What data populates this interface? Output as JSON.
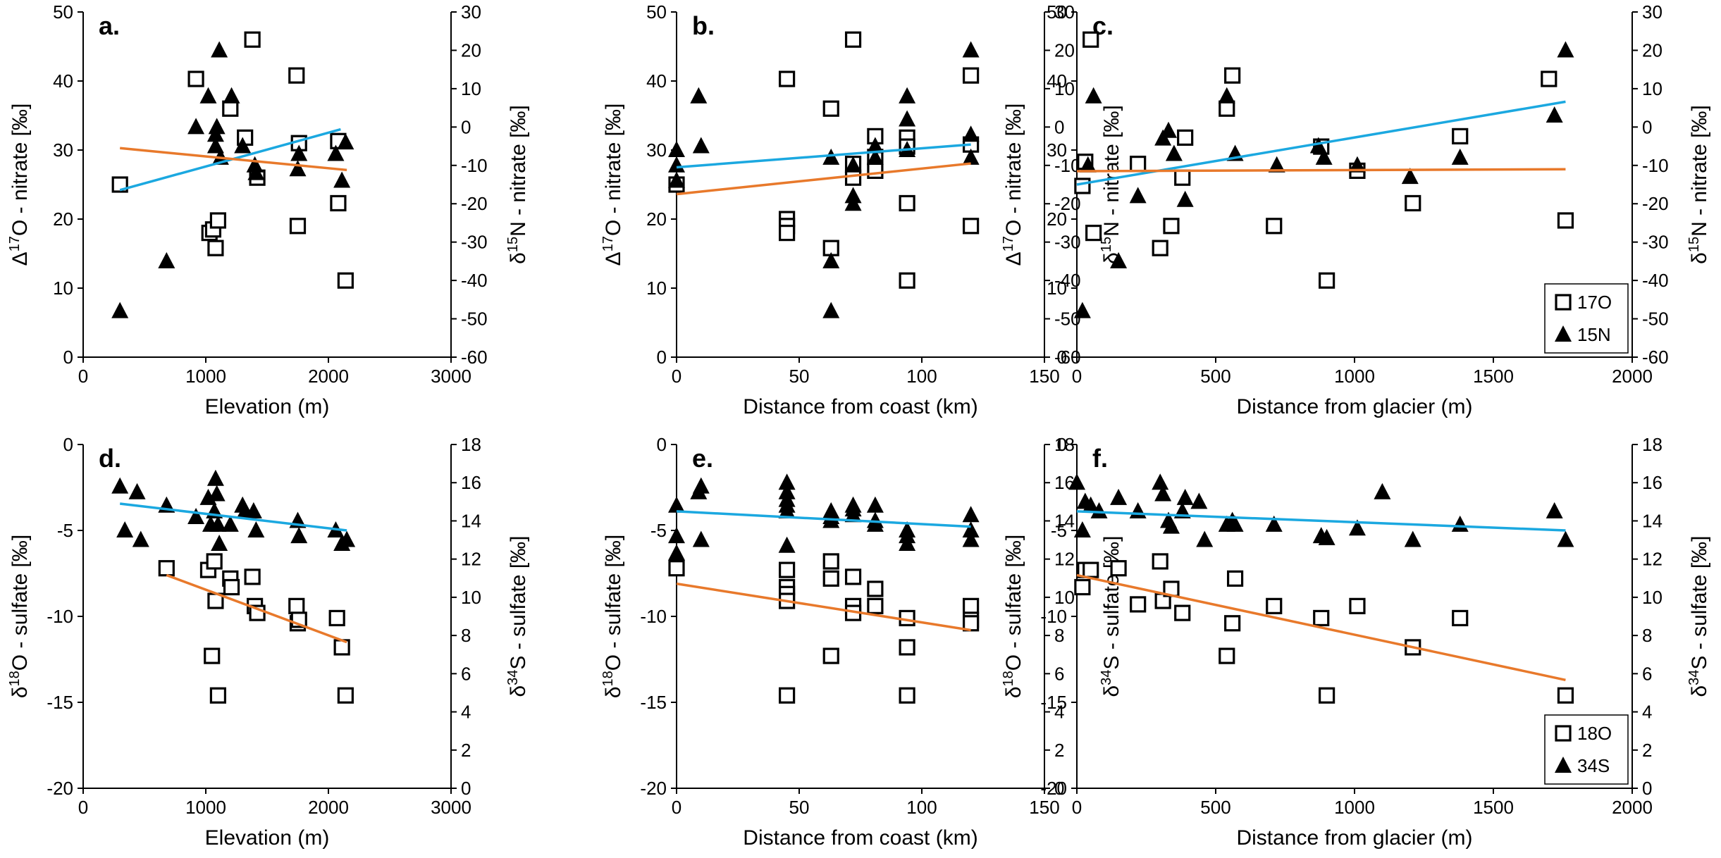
{
  "colors": {
    "fit_primary": "#1ba8e0",
    "fit_secondary": "#e8792b",
    "marker": "#000000"
  },
  "chart_data": [
    {
      "type": "scatter",
      "panel": "a.",
      "xlabel": "Elevation (m)",
      "xlim": [
        0,
        3000
      ],
      "xticks": [
        "0",
        "1000",
        "2000",
        "3000"
      ],
      "ylabel_left": {
        "pre": "Δ",
        "sup": "17",
        "post": "O - nitrate [‰]"
      },
      "ylim_left": [
        0,
        50
      ],
      "yticks_left": [
        "0",
        "10",
        "20",
        "30",
        "40",
        "50"
      ],
      "ylabel_right": {
        "pre": "δ",
        "sup": "15",
        "post": "N - nitrate [‰]"
      },
      "ylim_right": [
        -60,
        30
      ],
      "yticks_right": [
        "-60",
        "-50",
        "-40",
        "-30",
        "-20",
        "-10",
        "0",
        "10",
        "20",
        "30"
      ],
      "series": [
        {
          "name": "17O",
          "marker": "square",
          "axis": "left",
          "x": [
            300,
            920,
            1030,
            1060,
            1080,
            1100,
            1200,
            1320,
            1380,
            1420,
            1740,
            1760,
            1750,
            2080,
            2080,
            2140
          ],
          "y": [
            25,
            40.3,
            18,
            18.5,
            15.8,
            19.8,
            36,
            31.8,
            46,
            26,
            40.8,
            31,
            19,
            31.3,
            22.3,
            11.1
          ]
        },
        {
          "name": "15N",
          "marker": "triangle",
          "axis": "right",
          "x": [
            300,
            680,
            920,
            1020,
            1080,
            1080,
            1090,
            1110,
            1120,
            1210,
            1300,
            1400,
            1410,
            1750,
            1760,
            2060,
            2110,
            2140
          ],
          "y": [
            -48,
            -35,
            0,
            8,
            -5,
            -2,
            0,
            20,
            -8,
            8,
            -5,
            -10,
            -12,
            -11,
            -7,
            -7,
            -14,
            -4
          ]
        }
      ],
      "fits": [
        {
          "series": "17O",
          "axis": "left",
          "x": [
            300,
            2100
          ],
          "y": [
            24.2,
            33
          ]
        },
        {
          "series": "15N",
          "axis": "right",
          "x": [
            300,
            2150
          ],
          "y": [
            -5.5,
            -11.2
          ]
        }
      ]
    },
    {
      "type": "scatter",
      "panel": "b.",
      "xlabel": "Distance from coast (km)",
      "xlim": [
        0,
        150
      ],
      "xticks": [
        "0",
        "50",
        "100",
        "150"
      ],
      "ylabel_left": {
        "pre": "Δ",
        "sup": "17",
        "post": "O - nitrate [‰]"
      },
      "ylim_left": [
        0,
        50
      ],
      "yticks_left": [
        "0",
        "10",
        "20",
        "30",
        "40",
        "50"
      ],
      "ylabel_right": {
        "pre": "δ",
        "sup": "15",
        "post": "N - nitrate [‰]"
      },
      "ylim_right": [
        -60,
        30
      ],
      "yticks_right": [
        "-60",
        "-50",
        "-40",
        "-30",
        "-20",
        "-10",
        "0",
        "10",
        "20",
        "30"
      ],
      "series": [
        {
          "name": "17O",
          "marker": "square",
          "axis": "left",
          "x": [
            0,
            45,
            45,
            45,
            45,
            63,
            63,
            72,
            72,
            72,
            81,
            81,
            81,
            94,
            94,
            94,
            94,
            120,
            120,
            120
          ],
          "y": [
            25,
            40.3,
            20,
            19,
            18,
            36,
            15.8,
            46,
            28,
            26,
            32,
            29,
            27,
            31.8,
            30.5,
            22.3,
            11.1,
            40.8,
            30.8,
            19
          ]
        },
        {
          "name": "15N",
          "marker": "triangle",
          "axis": "right",
          "x": [
            0,
            0,
            0,
            9,
            10,
            63,
            63,
            63,
            72,
            72,
            72,
            81,
            81,
            94,
            94,
            94,
            120,
            120,
            120
          ],
          "y": [
            -6,
            -10,
            -14,
            8,
            -5,
            -8,
            -35,
            -48,
            -10,
            -18,
            -20,
            -8,
            -5,
            8,
            2,
            -6,
            20,
            -2,
            -8
          ]
        }
      ],
      "fits": [
        {
          "series": "17O",
          "axis": "left",
          "x": [
            0,
            120
          ],
          "y": [
            27.5,
            30.8
          ]
        },
        {
          "series": "15N",
          "axis": "right",
          "x": [
            0,
            120
          ],
          "y": [
            -17.5,
            -9.5
          ]
        }
      ]
    },
    {
      "type": "scatter",
      "panel": "c.",
      "xlabel": "Distance from glacier (m)",
      "xlim": [
        0,
        2000
      ],
      "xticks": [
        "0",
        "500",
        "1000",
        "1500",
        "2000"
      ],
      "ylabel_left": {
        "pre": "Δ",
        "sup": "17",
        "post": "O - nitrate [‰]"
      },
      "ylim_left": [
        0,
        50
      ],
      "yticks_left": [
        "0",
        "10",
        "20",
        "30",
        "40",
        "50"
      ],
      "ylabel_right": {
        "pre": "δ",
        "sup": "15",
        "post": "N - nitrate [‰]"
      },
      "ylim_right": [
        -60,
        30
      ],
      "yticks_right": [
        "-60",
        "-50",
        "-40",
        "-30",
        "-20",
        "-10",
        "0",
        "10",
        "20",
        "30"
      ],
      "legend": {
        "position": "bottom-right",
        "entries": [
          {
            "label": "17O",
            "marker": "square"
          },
          {
            "label": "15N",
            "marker": "triangle"
          }
        ]
      },
      "series": [
        {
          "name": "17O",
          "marker": "square",
          "axis": "left",
          "x": [
            20,
            30,
            60,
            50,
            220,
            300,
            340,
            380,
            390,
            540,
            560,
            710,
            880,
            900,
            1010,
            1210,
            1380,
            1700,
            1760
          ],
          "y": [
            24.8,
            28.3,
            18,
            46,
            28,
            15.8,
            19,
            26,
            31.8,
            36,
            40.8,
            19,
            30.5,
            11.1,
            27,
            22.3,
            32,
            40.3,
            19.8
          ]
        },
        {
          "name": "15N",
          "marker": "triangle",
          "axis": "right",
          "x": [
            20,
            40,
            60,
            150,
            220,
            310,
            330,
            350,
            390,
            540,
            570,
            720,
            870,
            890,
            1010,
            1200,
            1380,
            1720,
            1760
          ],
          "y": [
            -48,
            -10,
            8,
            -35,
            -18,
            -3,
            -1,
            -7,
            -19,
            8,
            -7,
            -10,
            -5,
            -8,
            -10,
            -13,
            -8,
            3,
            20
          ]
        }
      ],
      "fits": [
        {
          "series": "17O",
          "axis": "left",
          "x": [
            0,
            1760
          ],
          "y": [
            25,
            37
          ]
        },
        {
          "series": "15N",
          "axis": "right",
          "x": [
            0,
            1760
          ],
          "y": [
            -11.5,
            -11
          ]
        }
      ]
    },
    {
      "type": "scatter",
      "panel": "d.",
      "xlabel": "Elevation (m)",
      "xlim": [
        0,
        3000
      ],
      "xticks": [
        "0",
        "1000",
        "2000",
        "3000"
      ],
      "ylabel_left": {
        "pre": "δ",
        "sup": "18",
        "post": "O - sulfate [‰]"
      },
      "ylim_left": [
        -20,
        0
      ],
      "yticks_left": [
        "-20",
        "-15",
        "-10",
        "-5",
        "0"
      ],
      "ylabel_right": {
        "pre": "δ",
        "sup": "34",
        "post": "S - sulfate [‰]"
      },
      "ylim_right": [
        0,
        18
      ],
      "yticks_right": [
        "0",
        "2",
        "4",
        "6",
        "8",
        "10",
        "12",
        "14",
        "16",
        "18"
      ],
      "series": [
        {
          "name": "18O",
          "marker": "square",
          "axis": "left",
          "x": [
            680,
            1020,
            1050,
            1070,
            1080,
            1100,
            1200,
            1210,
            1380,
            1400,
            1420,
            1740,
            1750,
            1760,
            2070,
            2110,
            2140
          ],
          "y": [
            -7.2,
            -7.3,
            -12.3,
            -6.8,
            -9.1,
            -14.6,
            -7.8,
            -8.3,
            -7.7,
            -9.4,
            -9.8,
            -9.4,
            -10.4,
            -10.2,
            -10.1,
            -11.8,
            -14.6
          ]
        },
        {
          "name": "34S",
          "marker": "triangle",
          "axis": "right",
          "x": [
            300,
            340,
            440,
            470,
            680,
            920,
            1020,
            1040,
            1070,
            1080,
            1090,
            1100,
            1110,
            1200,
            1300,
            1320,
            1390,
            1410,
            1750,
            1760,
            2060,
            2110,
            2150
          ],
          "y": [
            15.8,
            13.5,
            15.5,
            13,
            14.8,
            14.2,
            15.2,
            13.8,
            14.5,
            16.2,
            15.4,
            13.8,
            12.8,
            13.8,
            14.8,
            14.5,
            14.5,
            13.5,
            14,
            13.2,
            13.5,
            12.8,
            13
          ]
        }
      ],
      "fits": [
        {
          "series": "34S",
          "axis": "right",
          "x": [
            300,
            2150
          ],
          "y": [
            14.9,
            13.5
          ]
        },
        {
          "series": "18O",
          "axis": "left",
          "x": [
            680,
            2150
          ],
          "y": [
            -7.6,
            -11.5
          ]
        }
      ]
    },
    {
      "type": "scatter",
      "panel": "e.",
      "xlabel": "Distance from coast (km)",
      "xlim": [
        0,
        150
      ],
      "xticks": [
        "0",
        "50",
        "100",
        "150"
      ],
      "ylabel_left": {
        "pre": "δ",
        "sup": "18",
        "post": "O - sulfate [‰]"
      },
      "ylim_left": [
        -20,
        0
      ],
      "yticks_left": [
        "-20",
        "-15",
        "-10",
        "-5",
        "0"
      ],
      "ylabel_right": {
        "pre": "δ",
        "sup": "34",
        "post": "S - sulfate [‰]"
      },
      "ylim_right": [
        0,
        18
      ],
      "yticks_right": [
        "0",
        "2",
        "4",
        "6",
        "8",
        "10",
        "12",
        "14",
        "16",
        "18"
      ],
      "series": [
        {
          "name": "18O",
          "marker": "square",
          "axis": "left",
          "x": [
            0,
            45,
            45,
            45,
            45,
            45,
            63,
            63,
            63,
            72,
            72,
            72,
            81,
            81,
            94,
            94,
            94,
            120,
            120,
            120
          ],
          "y": [
            -7.2,
            -7.3,
            -8.3,
            -8.7,
            -9.1,
            -14.6,
            -6.8,
            -7.8,
            -12.3,
            -7.7,
            -9.4,
            -9.8,
            -8.4,
            -9.4,
            -10.1,
            -11.8,
            -14.6,
            -9.4,
            -10.2,
            -10.4
          ]
        },
        {
          "name": "34S",
          "marker": "triangle",
          "axis": "right",
          "x": [
            0,
            0,
            0,
            9,
            10,
            10,
            45,
            45,
            45,
            45,
            45,
            45,
            63,
            63,
            63,
            72,
            72,
            72,
            81,
            81,
            81,
            94,
            94,
            94,
            120,
            120,
            120
          ],
          "y": [
            14.8,
            13.2,
            12.3,
            15.5,
            15.8,
            13,
            16,
            15.5,
            15.1,
            14.8,
            14.5,
            12.7,
            14.5,
            14.2,
            14,
            14.8,
            14.6,
            14.3,
            14.8,
            14,
            13.8,
            13.5,
            13.2,
            12.8,
            14.3,
            13.5,
            13
          ]
        }
      ],
      "fits": [
        {
          "series": "34S",
          "axis": "right",
          "x": [
            0,
            120
          ],
          "y": [
            14.5,
            13.7
          ]
        },
        {
          "series": "18O",
          "axis": "left",
          "x": [
            0,
            120
          ],
          "y": [
            -8.1,
            -10.8
          ]
        }
      ]
    },
    {
      "type": "scatter",
      "panel": "f.",
      "xlabel": "Distance from glacier (m)",
      "xlim": [
        0,
        2000
      ],
      "xticks": [
        "0",
        "500",
        "1000",
        "1500",
        "2000"
      ],
      "ylabel_left": {
        "pre": "δ",
        "sup": "18",
        "post": "O - sulfate [‰]"
      },
      "ylim_left": [
        -20,
        0
      ],
      "yticks_left": [
        "-20",
        "-15",
        "-10",
        "-5",
        "0"
      ],
      "ylabel_right": {
        "pre": "δ",
        "sup": "34",
        "post": "S - sulfate [‰]"
      },
      "ylim_right": [
        0,
        18
      ],
      "yticks_right": [
        "0",
        "2",
        "4",
        "6",
        "8",
        "10",
        "12",
        "14",
        "16",
        "18"
      ],
      "legend": {
        "position": "bottom-right",
        "entries": [
          {
            "label": "18O",
            "marker": "square"
          },
          {
            "label": "34S",
            "marker": "triangle"
          }
        ]
      },
      "series": [
        {
          "name": "18O",
          "marker": "square",
          "axis": "left",
          "x": [
            20,
            30,
            50,
            150,
            220,
            300,
            310,
            340,
            380,
            540,
            570,
            560,
            710,
            880,
            900,
            1010,
            1210,
            1380,
            1760
          ],
          "y": [
            -8.3,
            -7.3,
            -7.3,
            -7.2,
            -9.3,
            -6.8,
            -9.1,
            -8.4,
            -9.8,
            -12.3,
            -7.8,
            -10.4,
            -9.4,
            -10.1,
            -14.6,
            -9.4,
            -11.8,
            -10.1,
            -14.6
          ]
        },
        {
          "name": "34S",
          "marker": "triangle",
          "axis": "right",
          "x": [
            0,
            20,
            30,
            50,
            80,
            150,
            220,
            300,
            310,
            330,
            340,
            380,
            390,
            440,
            460,
            540,
            560,
            570,
            710,
            880,
            900,
            1010,
            1100,
            1210,
            1380,
            1720,
            1760
          ],
          "y": [
            16,
            13.5,
            15,
            14.8,
            14.5,
            15.2,
            14.5,
            16,
            15.4,
            14,
            13.7,
            14.5,
            15.2,
            15,
            13,
            13.8,
            14,
            13.8,
            13.8,
            13.2,
            13.1,
            13.6,
            15.5,
            13,
            13.8,
            14.5,
            13
          ]
        }
      ],
      "fits": [
        {
          "series": "34S",
          "axis": "right",
          "x": [
            0,
            1760
          ],
          "y": [
            14.5,
            13.5
          ]
        },
        {
          "series": "18O",
          "axis": "left",
          "x": [
            0,
            1760
          ],
          "y": [
            -7.6,
            -13.7
          ]
        }
      ]
    }
  ]
}
